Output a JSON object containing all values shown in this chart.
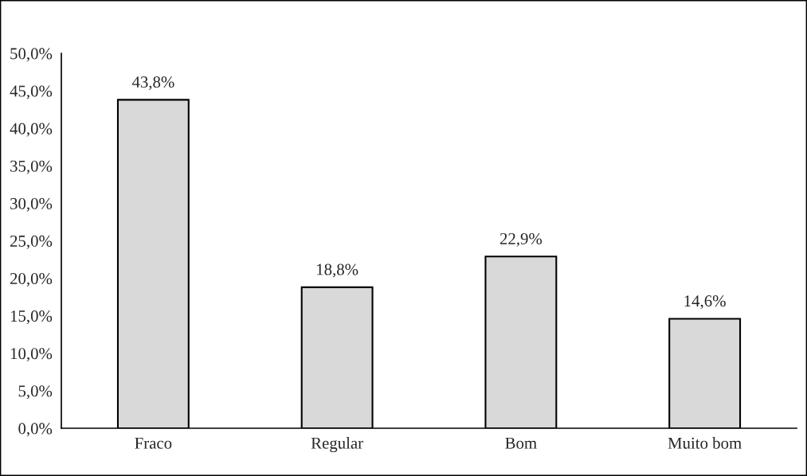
{
  "chart_data": {
    "type": "bar",
    "categories": [
      "Fraco",
      "Regular",
      "Bom",
      "Muito bom"
    ],
    "values": [
      43.8,
      18.8,
      22.9,
      14.6
    ],
    "value_labels": [
      "43,8%",
      "18,8%",
      "22,9%",
      "14,6%"
    ],
    "color": "#d9d9d9",
    "ylim": [
      0,
      50
    ],
    "yticks": [
      {
        "value": 0,
        "label": "0,0%"
      },
      {
        "value": 5,
        "label": "5,0%"
      },
      {
        "value": 10,
        "label": "10,0%"
      },
      {
        "value": 15,
        "label": "15,0%"
      },
      {
        "value": 20,
        "label": "20,0%"
      },
      {
        "value": 25,
        "label": "25,0%"
      },
      {
        "value": 30,
        "label": "30,0%"
      },
      {
        "value": 35,
        "label": "35,0%"
      },
      {
        "value": 40,
        "label": "40,0%"
      },
      {
        "value": 45,
        "label": "45,0%"
      },
      {
        "value": 50,
        "label": "50,0%"
      }
    ],
    "grid": false,
    "legend": false
  }
}
